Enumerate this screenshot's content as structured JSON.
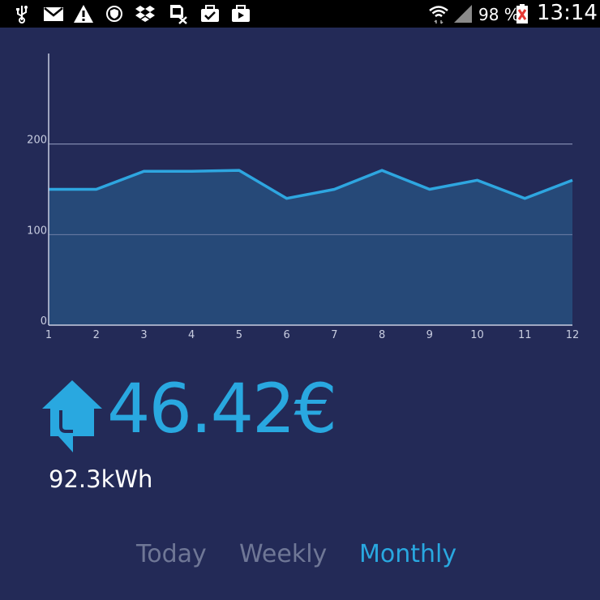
{
  "status_bar": {
    "battery": "98 %",
    "time": "13:14",
    "icons": [
      "usb-icon",
      "gmail-icon",
      "warning-icon",
      "vpn-shield-icon",
      "dropbox-icon",
      "sim-off-icon",
      "clipboard-check-icon",
      "briefcase-play-icon",
      "wifi-icon",
      "signal-icon",
      "battery-icon"
    ]
  },
  "chart_data": {
    "type": "area",
    "x": [
      1,
      2,
      3,
      4,
      5,
      6,
      7,
      8,
      9,
      10,
      11,
      12
    ],
    "values": [
      150,
      150,
      170,
      170,
      171,
      140,
      150,
      171,
      150,
      160,
      140,
      160
    ],
    "y_ticks": [
      0,
      100,
      200
    ],
    "x_ticks": [
      "1",
      "2",
      "3",
      "4",
      "5",
      "6",
      "7",
      "8",
      "9",
      "10",
      "11",
      "12"
    ],
    "ylim": [
      0,
      300
    ],
    "grid": true,
    "line_color": "#2ea6e0",
    "fill_color": "#274b7a"
  },
  "summary": {
    "cost": "46.42€",
    "energy": "92.3kWh"
  },
  "tabs": [
    {
      "label": "Today",
      "active": false
    },
    {
      "label": "Weekly",
      "active": false
    },
    {
      "label": "Monthly",
      "active": true
    }
  ],
  "colors": {
    "background": "#232a57",
    "accent": "#29a8e0",
    "inactive_tab": "#6f7796"
  }
}
